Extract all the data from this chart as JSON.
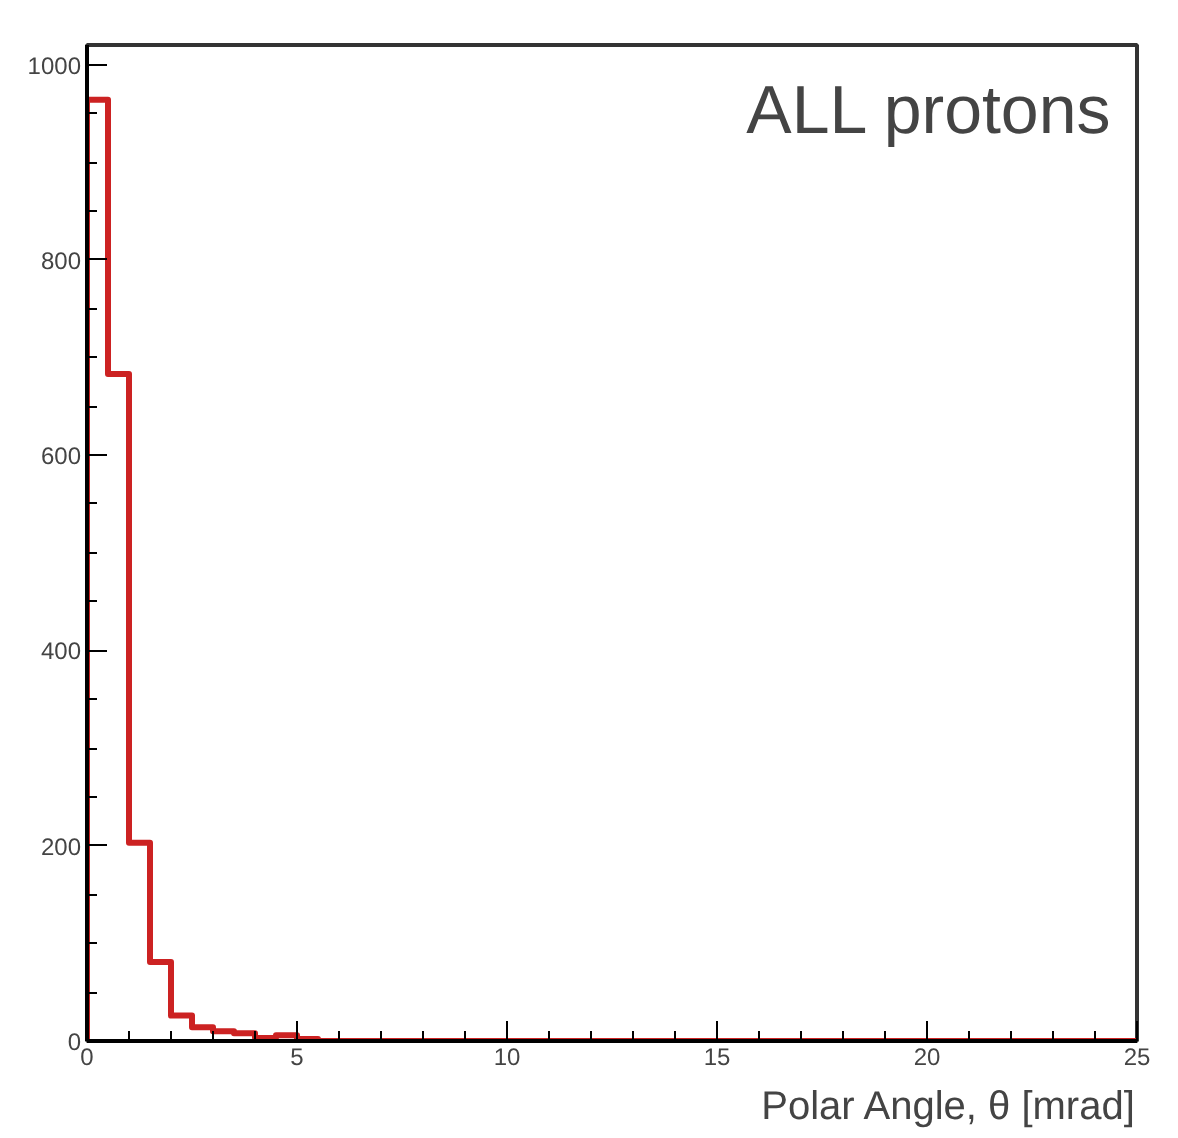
{
  "chart_data": {
    "type": "histogram",
    "xlabel": "Polar Angle, θ [mrad]",
    "annotations": [
      "ALL protons"
    ],
    "bins": [
      0,
      0.5,
      1,
      1.5,
      2,
      2.5,
      3,
      3.5,
      4,
      4.5,
      5,
      5.5,
      6,
      6.5,
      7,
      7.5,
      8,
      8.5,
      9,
      9.5,
      10,
      10.5,
      11,
      11.5,
      12,
      12.5,
      13,
      13.5,
      14,
      14.5,
      15,
      15.5,
      16,
      16.5,
      17,
      17.5,
      18,
      18.5,
      19,
      19.5,
      20,
      20.5,
      21,
      21.5,
      22,
      22.5,
      23,
      23.5,
      24,
      24.5,
      25
    ],
    "values": [
      964,
      683,
      203,
      81,
      26,
      14,
      10,
      8,
      3,
      6,
      2,
      0,
      0,
      0,
      0,
      0,
      0,
      0,
      0,
      0,
      0,
      0,
      0,
      0,
      0,
      0,
      0,
      0,
      0,
      0,
      0,
      0,
      0,
      0,
      0,
      0,
      0,
      0,
      0,
      0,
      0,
      0,
      0,
      0,
      0,
      0,
      0,
      0,
      0,
      0
    ],
    "color": "#cc2222",
    "xlim": [
      0,
      25
    ],
    "ylim": [
      0,
      1020
    ],
    "xticks": [
      0,
      5,
      10,
      15,
      20,
      25
    ],
    "yticks": [
      0,
      200,
      400,
      600,
      800,
      1000
    ]
  }
}
